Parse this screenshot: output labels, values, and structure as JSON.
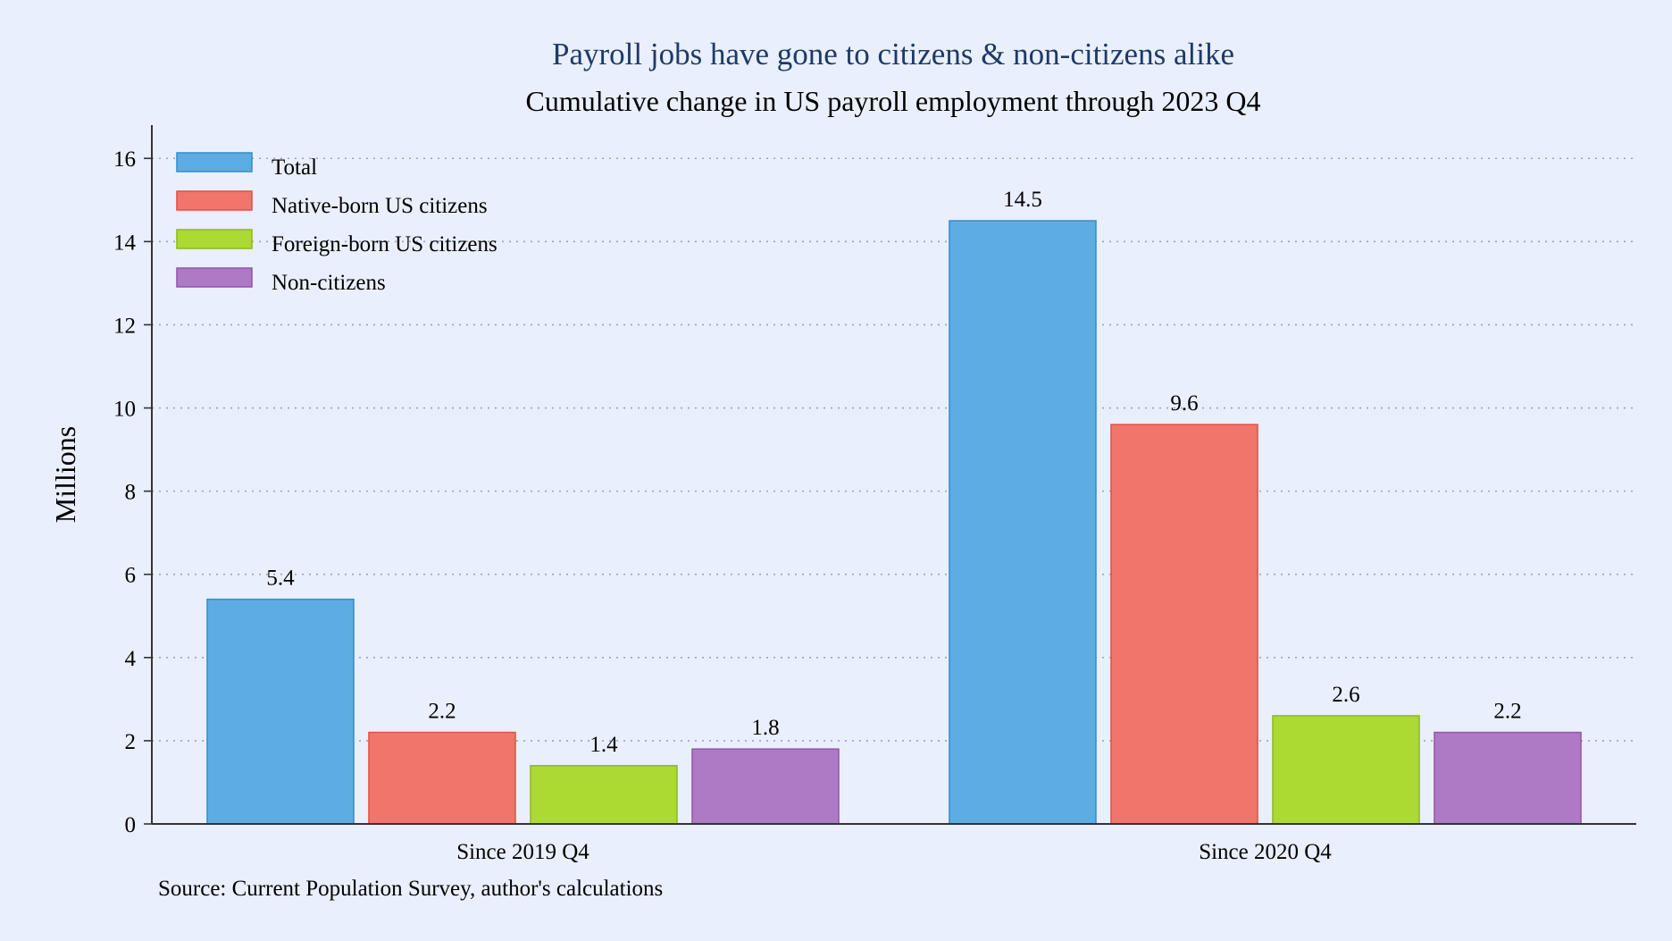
{
  "chart_data": {
    "type": "bar",
    "title": "Payroll jobs have gone to citizens & non-citizens alike",
    "subtitle": "Cumulative change in US payroll employment through 2023 Q4",
    "ylabel": "Millions",
    "xlabel": "",
    "source": "Source: Current Population Survey, author's calculations",
    "categories": [
      "Since 2019 Q4",
      "Since 2020 Q4"
    ],
    "ylim": [
      0,
      16.8
    ],
    "yticks": [
      0,
      2,
      4,
      6,
      8,
      10,
      12,
      14,
      16
    ],
    "grid": "horizontal dotted",
    "legend_position": "top-left",
    "series": [
      {
        "name": "Total",
        "values": [
          5.4,
          14.5
        ],
        "labels": [
          "5.4",
          "14.5"
        ],
        "color": "#5dade2",
        "stroke": "#3a8fcf"
      },
      {
        "name": "Native-born US citizens",
        "values": [
          2.2,
          9.6
        ],
        "labels": [
          "2.2",
          "9.6"
        ],
        "color": "#f1756b",
        "stroke": "#e0544a"
      },
      {
        "name": "Foreign-born US citizens",
        "values": [
          1.4,
          2.6
        ],
        "labels": [
          "1.4",
          "2.6"
        ],
        "color": "#add933",
        "stroke": "#8fbd1f"
      },
      {
        "name": "Non-citizens",
        "values": [
          1.8,
          2.2
        ],
        "labels": [
          "1.8",
          "2.2"
        ],
        "color": "#af7ac5",
        "stroke": "#9559b0"
      }
    ]
  }
}
